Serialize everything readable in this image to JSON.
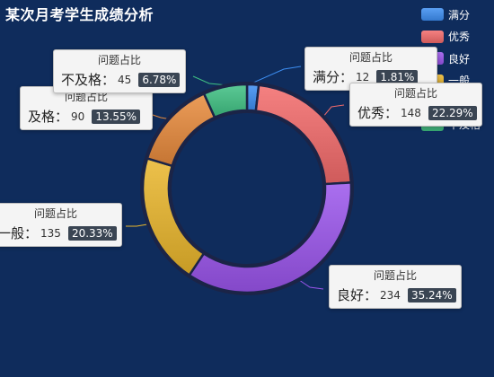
{
  "chart_data": {
    "type": "pie",
    "variant": "donut",
    "title": "某次月考学生成绩分析",
    "tooltip_title": "问题占比",
    "categories": [
      "满分",
      "优秀",
      "良好",
      "一般",
      "及格",
      "不及格"
    ],
    "values": [
      12,
      148,
      234,
      135,
      90,
      45
    ],
    "percents": [
      "1.81%",
      "22.29%",
      "35.24%",
      "20.33%",
      "13.55%",
      "6.78%"
    ],
    "colors": [
      "#3d8ef2",
      "#f36b6b",
      "#9b55ec",
      "#eab62c",
      "#e88a3c",
      "#3fc183"
    ],
    "legend_position": "top-right"
  }
}
